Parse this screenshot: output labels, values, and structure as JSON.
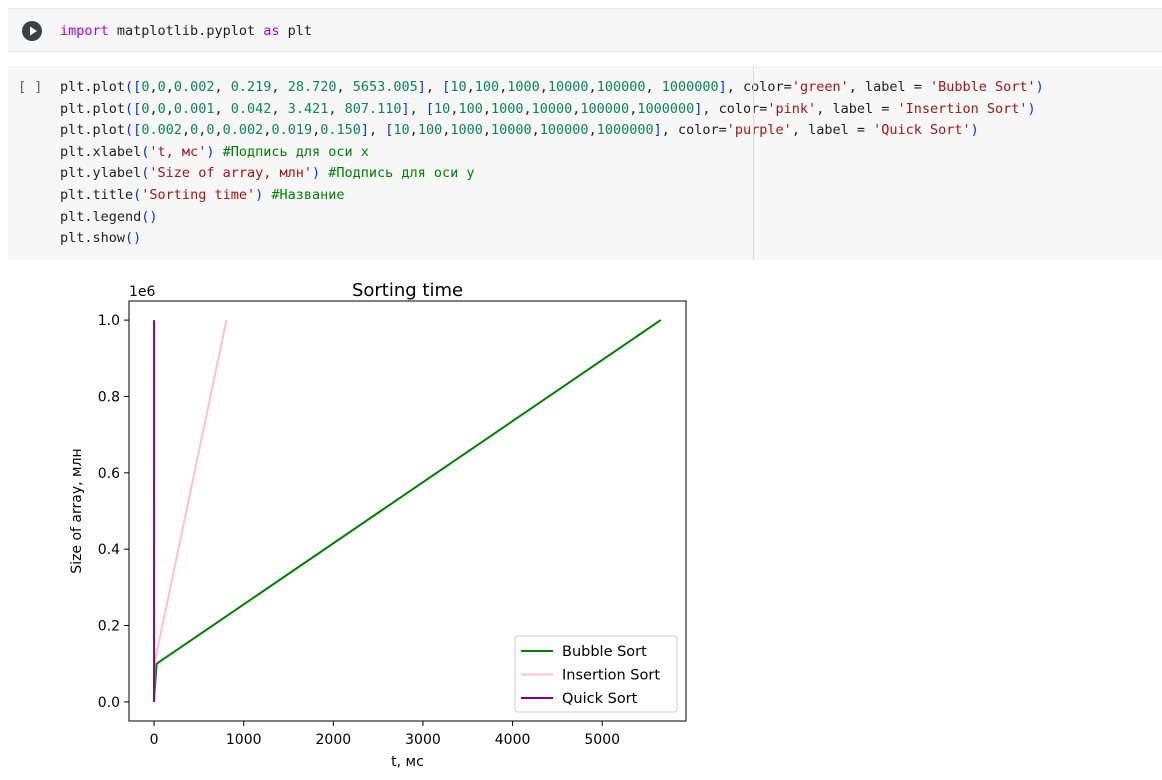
{
  "cell1": {
    "code_tokens": [
      {
        "t": "import",
        "c": "kw"
      },
      {
        "t": " matplotlib.pyplot ",
        "c": ""
      },
      {
        "t": "as",
        "c": "kw"
      },
      {
        "t": " plt",
        "c": ""
      }
    ]
  },
  "cell2": {
    "exec_count": "[ ]",
    "lines": [
      [
        {
          "t": "plt.plot",
          "c": ""
        },
        {
          "t": "(",
          "c": "br"
        },
        {
          "t": "[",
          "c": "br"
        },
        {
          "t": "0",
          "c": "num"
        },
        {
          "t": ",",
          "c": ""
        },
        {
          "t": "0",
          "c": "num"
        },
        {
          "t": ",",
          "c": ""
        },
        {
          "t": "0.002",
          "c": "num"
        },
        {
          "t": ", ",
          "c": ""
        },
        {
          "t": "0.219",
          "c": "num"
        },
        {
          "t": ", ",
          "c": ""
        },
        {
          "t": "28.720",
          "c": "num"
        },
        {
          "t": ", ",
          "c": ""
        },
        {
          "t": "5653.005",
          "c": "num"
        },
        {
          "t": "]",
          "c": "br"
        },
        {
          "t": ", ",
          "c": ""
        },
        {
          "t": "[",
          "c": "br"
        },
        {
          "t": "10",
          "c": "num"
        },
        {
          "t": ",",
          "c": ""
        },
        {
          "t": "100",
          "c": "num"
        },
        {
          "t": ",",
          "c": ""
        },
        {
          "t": "1000",
          "c": "num"
        },
        {
          "t": ",",
          "c": ""
        },
        {
          "t": "10000",
          "c": "num"
        },
        {
          "t": ",",
          "c": ""
        },
        {
          "t": "100000",
          "c": "num"
        },
        {
          "t": ", ",
          "c": ""
        },
        {
          "t": "1000000",
          "c": "num"
        },
        {
          "t": "]",
          "c": "br"
        },
        {
          "t": ", color=",
          "c": ""
        },
        {
          "t": "'green'",
          "c": "str"
        },
        {
          "t": ", label = ",
          "c": ""
        },
        {
          "t": "'Bubble Sort'",
          "c": "str"
        },
        {
          "t": ")",
          "c": "br"
        }
      ],
      [
        {
          "t": "plt.plot",
          "c": ""
        },
        {
          "t": "(",
          "c": "br"
        },
        {
          "t": "[",
          "c": "br"
        },
        {
          "t": "0",
          "c": "num"
        },
        {
          "t": ",",
          "c": ""
        },
        {
          "t": "0",
          "c": "num"
        },
        {
          "t": ",",
          "c": ""
        },
        {
          "t": "0.001",
          "c": "num"
        },
        {
          "t": ", ",
          "c": ""
        },
        {
          "t": "0.042",
          "c": "num"
        },
        {
          "t": ", ",
          "c": ""
        },
        {
          "t": "3.421",
          "c": "num"
        },
        {
          "t": ", ",
          "c": ""
        },
        {
          "t": "807.110",
          "c": "num"
        },
        {
          "t": "]",
          "c": "br"
        },
        {
          "t": ", ",
          "c": ""
        },
        {
          "t": "[",
          "c": "br"
        },
        {
          "t": "10",
          "c": "num"
        },
        {
          "t": ",",
          "c": ""
        },
        {
          "t": "100",
          "c": "num"
        },
        {
          "t": ",",
          "c": ""
        },
        {
          "t": "1000",
          "c": "num"
        },
        {
          "t": ",",
          "c": ""
        },
        {
          "t": "10000",
          "c": "num"
        },
        {
          "t": ",",
          "c": ""
        },
        {
          "t": "100000",
          "c": "num"
        },
        {
          "t": ",",
          "c": ""
        },
        {
          "t": "1000000",
          "c": "num"
        },
        {
          "t": "]",
          "c": "br"
        },
        {
          "t": ", color=",
          "c": ""
        },
        {
          "t": "'pink'",
          "c": "str"
        },
        {
          "t": ", label = ",
          "c": ""
        },
        {
          "t": "'Insertion Sort'",
          "c": "str"
        },
        {
          "t": ")",
          "c": "br"
        }
      ],
      [
        {
          "t": "plt.plot",
          "c": ""
        },
        {
          "t": "(",
          "c": "br"
        },
        {
          "t": "[",
          "c": "br"
        },
        {
          "t": "0.002",
          "c": "num"
        },
        {
          "t": ",",
          "c": ""
        },
        {
          "t": "0",
          "c": "num"
        },
        {
          "t": ",",
          "c": ""
        },
        {
          "t": "0",
          "c": "num"
        },
        {
          "t": ",",
          "c": ""
        },
        {
          "t": "0.002",
          "c": "num"
        },
        {
          "t": ",",
          "c": ""
        },
        {
          "t": "0.019",
          "c": "num"
        },
        {
          "t": ",",
          "c": ""
        },
        {
          "t": "0.150",
          "c": "num"
        },
        {
          "t": "]",
          "c": "br"
        },
        {
          "t": ", ",
          "c": ""
        },
        {
          "t": "[",
          "c": "br"
        },
        {
          "t": "10",
          "c": "num"
        },
        {
          "t": ",",
          "c": ""
        },
        {
          "t": "100",
          "c": "num"
        },
        {
          "t": ",",
          "c": ""
        },
        {
          "t": "1000",
          "c": "num"
        },
        {
          "t": ",",
          "c": ""
        },
        {
          "t": "10000",
          "c": "num"
        },
        {
          "t": ",",
          "c": ""
        },
        {
          "t": "100000",
          "c": "num"
        },
        {
          "t": ",",
          "c": ""
        },
        {
          "t": "1000000",
          "c": "num"
        },
        {
          "t": "]",
          "c": "br"
        },
        {
          "t": ", color=",
          "c": ""
        },
        {
          "t": "'purple'",
          "c": "str"
        },
        {
          "t": ", label = ",
          "c": ""
        },
        {
          "t": "'Quick Sort'",
          "c": "str"
        },
        {
          "t": ")",
          "c": "br"
        }
      ],
      [
        {
          "t": "plt.xlabel",
          "c": ""
        },
        {
          "t": "(",
          "c": "br"
        },
        {
          "t": "'t, мс'",
          "c": "str"
        },
        {
          "t": ")",
          "c": "br"
        },
        {
          "t": " ",
          "c": ""
        },
        {
          "t": "#Подпись для оси х",
          "c": "cmt"
        }
      ],
      [
        {
          "t": "plt.ylabel",
          "c": ""
        },
        {
          "t": "(",
          "c": "br"
        },
        {
          "t": "'Size of array, млн'",
          "c": "str"
        },
        {
          "t": ")",
          "c": "br"
        },
        {
          "t": " ",
          "c": ""
        },
        {
          "t": "#Подпись для оси у",
          "c": "cmt"
        }
      ],
      [
        {
          "t": "plt.title",
          "c": ""
        },
        {
          "t": "(",
          "c": "br"
        },
        {
          "t": "'Sorting time'",
          "c": "str"
        },
        {
          "t": ")",
          "c": "br"
        },
        {
          "t": " ",
          "c": ""
        },
        {
          "t": "#Название",
          "c": "cmt"
        }
      ],
      [
        {
          "t": "plt.legend",
          "c": ""
        },
        {
          "t": "()",
          "c": "br"
        }
      ],
      [
        {
          "t": "plt.show",
          "c": ""
        },
        {
          "t": "()",
          "c": "br"
        }
      ]
    ]
  },
  "chart_data": {
    "type": "line",
    "title": "Sorting time",
    "xlabel": "t, мс",
    "ylabel": "Size of array, млн",
    "y_offset_label": "1e6",
    "xlim": [
      -280,
      5935
    ],
    "ylim": [
      -50000,
      1050000
    ],
    "x_ticks": [
      0,
      1000,
      2000,
      3000,
      4000,
      5000
    ],
    "x_tick_labels": [
      "0",
      "1000",
      "2000",
      "3000",
      "4000",
      "5000"
    ],
    "y_ticks": [
      0,
      200000,
      400000,
      600000,
      800000,
      1000000
    ],
    "y_tick_labels": [
      "0.0",
      "0.2",
      "0.4",
      "0.6",
      "0.8",
      "1.0"
    ],
    "grid": false,
    "legend_position": "lower right",
    "series": [
      {
        "name": "Bubble Sort",
        "color": "#008000",
        "x": [
          0,
          0,
          0.002,
          0.219,
          28.72,
          5653.005
        ],
        "y": [
          10,
          100,
          1000,
          10000,
          100000,
          1000000
        ]
      },
      {
        "name": "Insertion Sort",
        "color": "#ffc0cb",
        "x": [
          0,
          0,
          0.001,
          0.042,
          3.421,
          807.11
        ],
        "y": [
          10,
          100,
          1000,
          10000,
          100000,
          1000000
        ]
      },
      {
        "name": "Quick Sort",
        "color": "#800080",
        "x": [
          0.002,
          0,
          0,
          0.002,
          0.019,
          0.15
        ],
        "y": [
          10,
          100,
          1000,
          10000,
          100000,
          1000000
        ]
      }
    ]
  }
}
